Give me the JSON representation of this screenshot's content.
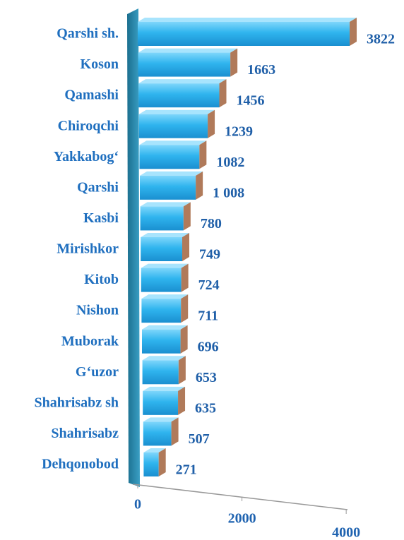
{
  "chart_data": {
    "type": "bar",
    "orientation": "horizontal",
    "categories": [
      "Qarshi sh.",
      "Koson",
      "Qamashi",
      "Chiroqchi",
      "Yakkabog‘",
      "Qarshi",
      "Kasbi",
      "Mirishkor",
      "Kitob",
      "Nishon",
      "Muborak",
      "G‘uzor",
      "Shahrisabz sh",
      "Shahrisabz",
      "Dehqonobod"
    ],
    "values": [
      3822,
      1663,
      1456,
      1239,
      1082,
      1008,
      780,
      749,
      724,
      711,
      696,
      653,
      635,
      507,
      271
    ],
    "value_labels": [
      "3822",
      "1663",
      "1456",
      "1239",
      "1082",
      "1 008",
      "780",
      "749",
      "724",
      "711",
      "696",
      "653",
      "635",
      "507",
      "271"
    ],
    "color": "#29b6f0",
    "xlim": [
      0,
      4000
    ],
    "xticks": [
      0,
      2000,
      4000
    ]
  }
}
